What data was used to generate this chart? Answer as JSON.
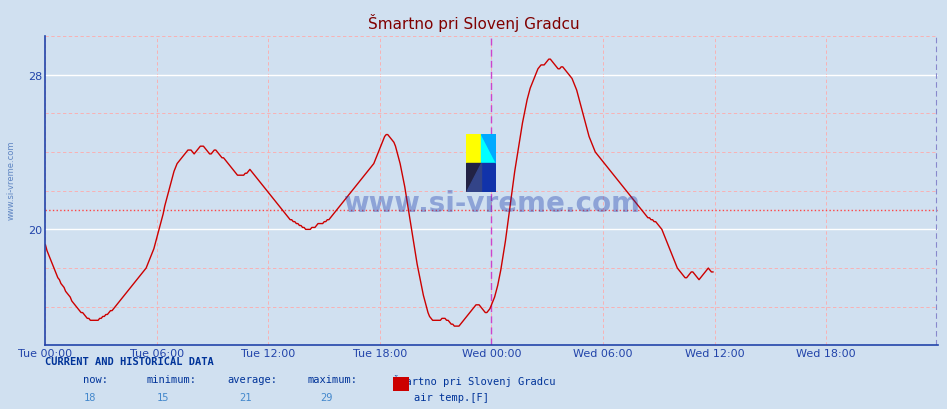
{
  "title": "Šmartno pri Slovenj Gradcu",
  "title_color": "#800000",
  "bg_color": "#d0e0f0",
  "plot_bg_color": "#d0e0f0",
  "line_color": "#cc0000",
  "line_width": 1.0,
  "ylim_min": 14,
  "ylim_max": 30,
  "ytick_vals": [
    20,
    28
  ],
  "y_average_line": 21.0,
  "xlabel_color": "#2244aa",
  "xtick_labels": [
    "Tue 00:00",
    "Tue 06:00",
    "Tue 12:00",
    "Tue 18:00",
    "Wed 00:00",
    "Wed 06:00",
    "Wed 12:00",
    "Wed 18:00"
  ],
  "xtick_positions": [
    0,
    72,
    144,
    216,
    288,
    360,
    432,
    504
  ],
  "total_points": 576,
  "watermark_text": "www.si-vreme.com",
  "side_text": "www.si-vreme.com",
  "bottom_line1": "CURRENT AND HISTORICAL DATA",
  "bottom_now_label": "now:",
  "bottom_min_label": "minimum:",
  "bottom_avg_label": "average:",
  "bottom_max_label": "maximum:",
  "bottom_station": "Šmartno pri Slovenj Gradcu",
  "bottom_now": "18",
  "bottom_min": "15",
  "bottom_avg": "21",
  "bottom_max": "29",
  "bottom_series_label": "air temp.[F]",
  "values": [
    19.2,
    18.9,
    18.7,
    18.5,
    18.3,
    18.1,
    17.9,
    17.7,
    17.5,
    17.4,
    17.2,
    17.1,
    17.0,
    16.8,
    16.7,
    16.6,
    16.5,
    16.3,
    16.2,
    16.1,
    16.0,
    15.9,
    15.8,
    15.7,
    15.7,
    15.6,
    15.5,
    15.4,
    15.4,
    15.3,
    15.3,
    15.3,
    15.3,
    15.3,
    15.3,
    15.4,
    15.4,
    15.5,
    15.5,
    15.6,
    15.6,
    15.7,
    15.8,
    15.8,
    15.9,
    16.0,
    16.1,
    16.2,
    16.3,
    16.4,
    16.5,
    16.6,
    16.7,
    16.8,
    16.9,
    17.0,
    17.1,
    17.2,
    17.3,
    17.4,
    17.5,
    17.6,
    17.7,
    17.8,
    17.9,
    18.0,
    18.2,
    18.4,
    18.6,
    18.8,
    19.0,
    19.3,
    19.6,
    19.9,
    20.2,
    20.5,
    20.8,
    21.2,
    21.5,
    21.8,
    22.1,
    22.4,
    22.7,
    23.0,
    23.2,
    23.4,
    23.5,
    23.6,
    23.7,
    23.8,
    23.9,
    24.0,
    24.1,
    24.1,
    24.1,
    24.0,
    23.9,
    24.0,
    24.1,
    24.2,
    24.3,
    24.3,
    24.3,
    24.2,
    24.1,
    24.0,
    23.9,
    23.9,
    24.0,
    24.1,
    24.1,
    24.0,
    23.9,
    23.8,
    23.7,
    23.7,
    23.6,
    23.5,
    23.4,
    23.3,
    23.2,
    23.1,
    23.0,
    22.9,
    22.8,
    22.8,
    22.8,
    22.8,
    22.8,
    22.9,
    22.9,
    23.0,
    23.1,
    23.0,
    22.9,
    22.8,
    22.7,
    22.6,
    22.5,
    22.4,
    22.3,
    22.2,
    22.1,
    22.0,
    21.9,
    21.8,
    21.7,
    21.6,
    21.5,
    21.4,
    21.3,
    21.2,
    21.1,
    21.0,
    20.9,
    20.8,
    20.7,
    20.6,
    20.5,
    20.5,
    20.4,
    20.4,
    20.3,
    20.3,
    20.2,
    20.2,
    20.1,
    20.1,
    20.0,
    20.0,
    20.0,
    20.0,
    20.1,
    20.1,
    20.1,
    20.2,
    20.3,
    20.3,
    20.3,
    20.3,
    20.4,
    20.4,
    20.5,
    20.5,
    20.6,
    20.7,
    20.8,
    20.9,
    21.0,
    21.1,
    21.2,
    21.3,
    21.4,
    21.5,
    21.6,
    21.7,
    21.8,
    21.9,
    22.0,
    22.1,
    22.2,
    22.3,
    22.4,
    22.5,
    22.6,
    22.7,
    22.8,
    22.9,
    23.0,
    23.1,
    23.2,
    23.3,
    23.4,
    23.6,
    23.8,
    24.0,
    24.2,
    24.4,
    24.6,
    24.8,
    24.9,
    24.9,
    24.8,
    24.7,
    24.6,
    24.5,
    24.3,
    24.0,
    23.7,
    23.4,
    23.0,
    22.6,
    22.2,
    21.7,
    21.2,
    20.7,
    20.2,
    19.7,
    19.2,
    18.7,
    18.2,
    17.8,
    17.4,
    17.0,
    16.6,
    16.3,
    16.0,
    15.7,
    15.5,
    15.4,
    15.3,
    15.3,
    15.3,
    15.3,
    15.3,
    15.3,
    15.4,
    15.4,
    15.4,
    15.3,
    15.3,
    15.2,
    15.1,
    15.1,
    15.0,
    15.0,
    15.0,
    15.0,
    15.1,
    15.2,
    15.3,
    15.4,
    15.5,
    15.6,
    15.7,
    15.8,
    15.9,
    16.0,
    16.1,
    16.1,
    16.1,
    16.0,
    15.9,
    15.8,
    15.7,
    15.7,
    15.8,
    15.9,
    16.1,
    16.3,
    16.5,
    16.8,
    17.1,
    17.5,
    17.9,
    18.4,
    18.9,
    19.4,
    20.0,
    20.6,
    21.2,
    21.8,
    22.4,
    23.0,
    23.5,
    24.0,
    24.5,
    25.0,
    25.5,
    25.9,
    26.3,
    26.7,
    27.0,
    27.3,
    27.5,
    27.7,
    27.9,
    28.1,
    28.3,
    28.4,
    28.5,
    28.5,
    28.5,
    28.6,
    28.7,
    28.8,
    28.8,
    28.7,
    28.6,
    28.5,
    28.4,
    28.3,
    28.3,
    28.4,
    28.4,
    28.3,
    28.2,
    28.1,
    28.0,
    27.9,
    27.8,
    27.6,
    27.4,
    27.2,
    26.9,
    26.6,
    26.3,
    26.0,
    25.7,
    25.4,
    25.1,
    24.8,
    24.6,
    24.4,
    24.2,
    24.0,
    23.9,
    23.8,
    23.7,
    23.6,
    23.5,
    23.4,
    23.3,
    23.2,
    23.1,
    23.0,
    22.9,
    22.8,
    22.7,
    22.6,
    22.5,
    22.4,
    22.3,
    22.2,
    22.1,
    22.0,
    21.9,
    21.8,
    21.7,
    21.6,
    21.5,
    21.4,
    21.3,
    21.2,
    21.1,
    21.0,
    20.9,
    20.8,
    20.7,
    20.6,
    20.6,
    20.5,
    20.5,
    20.4,
    20.4,
    20.3,
    20.2,
    20.1,
    20.0,
    19.8,
    19.6,
    19.4,
    19.2,
    19.0,
    18.8,
    18.6,
    18.4,
    18.2,
    18.0,
    17.9,
    17.8,
    17.7,
    17.6,
    17.5,
    17.5,
    17.6,
    17.7,
    17.8,
    17.8,
    17.7,
    17.6,
    17.5,
    17.4,
    17.5,
    17.6,
    17.7,
    17.8,
    17.9,
    18.0,
    17.9,
    17.8,
    17.8
  ]
}
